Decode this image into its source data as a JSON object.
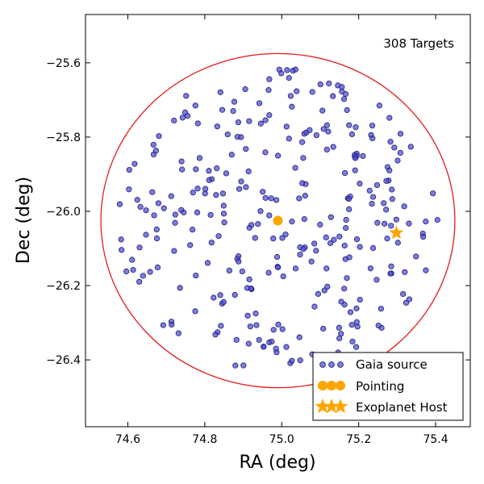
{
  "chart_data": {
    "type": "scatter",
    "xlabel": "RA (deg)",
    "ylabel": "Dec (deg)",
    "xlim": [
      74.49,
      75.49
    ],
    "ylim": [
      -26.58,
      -25.47
    ],
    "x_ticks": [
      74.6,
      74.8,
      75.0,
      75.2,
      75.4
    ],
    "y_ticks": [
      -25.6,
      -25.8,
      -26.0,
      -26.2,
      -26.4
    ],
    "x_tick_labels": [
      "74.6",
      "74.8",
      "75.0",
      "75.2",
      "75.4"
    ],
    "y_tick_labels": [
      "−25.6",
      "−25.8",
      "−26.0",
      "−26.2",
      "−26.4"
    ],
    "grid": false,
    "annotation": "308 Targets",
    "legend_position": "lower-right",
    "colors": {
      "gaia": "#4b4bd1",
      "gaia_edge": "#1e1e78",
      "pointing": "#ffa500",
      "host": "#ffa500",
      "circle": "#e31a1c"
    },
    "field_circle": {
      "center_ra": 74.99,
      "center_dec": -26.025,
      "radius_ra_deg": 0.46,
      "radius_dec_deg": 0.45
    },
    "series": [
      {
        "name": "Gaia source",
        "marker": "circle",
        "seed": 7,
        "count": 308,
        "center": [
          74.99,
          -26.025
        ],
        "radius": [
          0.42,
          0.41
        ]
      },
      {
        "name": "Pointing",
        "marker": "circle",
        "points": [
          [
            74.99,
            -26.025
          ]
        ]
      },
      {
        "name": "Exoplanet Host",
        "marker": "star",
        "points": [
          [
            75.298,
            -26.058
          ]
        ]
      }
    ]
  }
}
